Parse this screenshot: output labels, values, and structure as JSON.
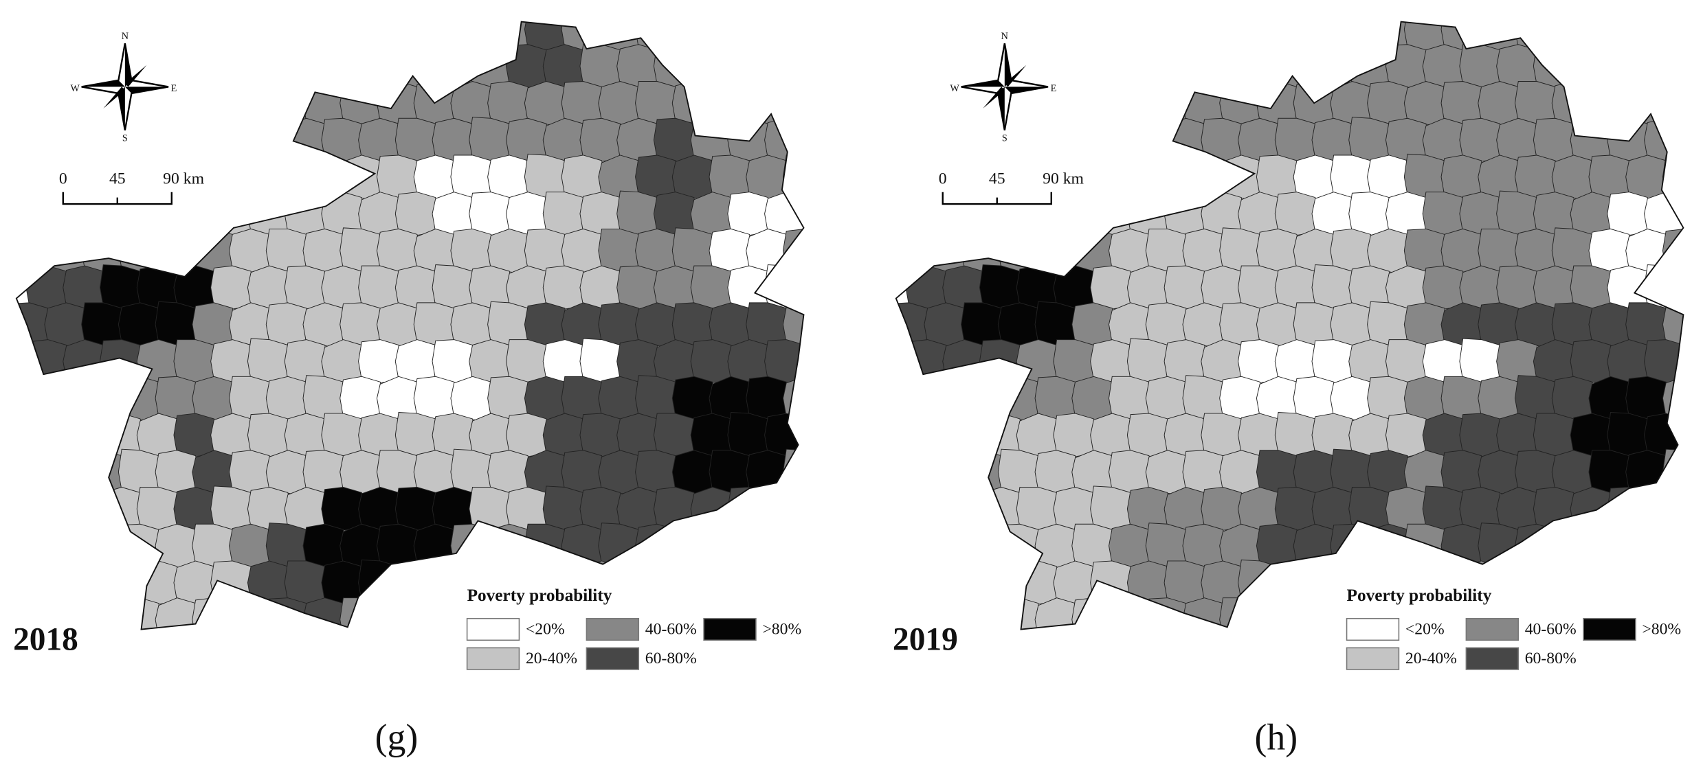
{
  "panels": [
    {
      "year": "2018",
      "caption": "(g)"
    },
    {
      "year": "2019",
      "caption": "(h)"
    }
  ],
  "compass": {
    "n": "N",
    "s": "S",
    "e": "E",
    "w": "W"
  },
  "scale_bar": {
    "ticks": [
      "0",
      "45",
      "90 km"
    ]
  },
  "legend": {
    "title": "Poverty probability",
    "items": [
      {
        "label": "<20%",
        "color": "#ffffff"
      },
      {
        "label": "20-40%",
        "color": "#c4c4c4"
      },
      {
        "label": "40-60%",
        "color": "#878787"
      },
      {
        "label": "60-80%",
        "color": "#474747"
      },
      {
        "label": ">80%",
        "color": "#050505"
      }
    ]
  }
}
